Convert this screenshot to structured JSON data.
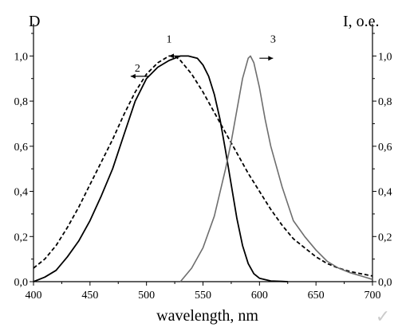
{
  "chart_data": {
    "type": "line",
    "xlabel": "wavelength, nm",
    "ylabel_left": "D",
    "ylabel_right": "I, o.e.",
    "xlim": [
      400,
      700
    ],
    "ylim": [
      0.0,
      1.1
    ],
    "x_ticks": [
      400,
      450,
      500,
      550,
      600,
      650,
      700
    ],
    "y_ticks": [
      0.0,
      0.2,
      0.4,
      0.6,
      0.8,
      1.0
    ],
    "y_tick_labels": [
      "0,0",
      "0,2",
      "0,4",
      "0,6",
      "0,8",
      "1,0"
    ],
    "curve_labels": [
      {
        "text": "1",
        "series": 0,
        "arrow": "left"
      },
      {
        "text": "2",
        "series": 1,
        "arrow": "left"
      },
      {
        "text": "3",
        "series": 2,
        "arrow": "right"
      }
    ],
    "series": [
      {
        "style": "solid",
        "color": "#000000",
        "axis": "left",
        "x": [
          400,
          410,
          420,
          430,
          440,
          450,
          460,
          470,
          480,
          490,
          500,
          510,
          520,
          530,
          537,
          545,
          550,
          555,
          560,
          565,
          570,
          575,
          580,
          585,
          590,
          595,
          600,
          610,
          620,
          625
        ],
        "y": [
          0.0,
          0.02,
          0.05,
          0.11,
          0.18,
          0.27,
          0.38,
          0.5,
          0.65,
          0.8,
          0.9,
          0.95,
          0.98,
          1.0,
          1.0,
          0.99,
          0.96,
          0.91,
          0.83,
          0.72,
          0.58,
          0.43,
          0.28,
          0.16,
          0.08,
          0.035,
          0.015,
          0.003,
          0.001,
          0.0
        ]
      },
      {
        "style": "dashed",
        "color": "#000000",
        "axis": "left",
        "x": [
          400,
          410,
          420,
          430,
          440,
          450,
          460,
          470,
          480,
          490,
          500,
          510,
          520,
          525,
          530,
          540,
          550,
          560,
          570,
          580,
          590,
          600,
          610,
          620,
          630,
          640,
          650,
          660,
          670,
          680,
          690,
          700
        ],
        "y": [
          0.06,
          0.1,
          0.16,
          0.24,
          0.33,
          0.43,
          0.53,
          0.63,
          0.74,
          0.84,
          0.92,
          0.97,
          1.0,
          1.0,
          0.98,
          0.92,
          0.84,
          0.75,
          0.66,
          0.57,
          0.48,
          0.4,
          0.32,
          0.25,
          0.19,
          0.15,
          0.11,
          0.08,
          0.06,
          0.045,
          0.035,
          0.025
        ]
      },
      {
        "style": "solid",
        "color": "#6e6e6e",
        "axis": "right",
        "x": [
          530,
          540,
          550,
          560,
          570,
          575,
          580,
          585,
          590,
          592,
          595,
          600,
          605,
          610,
          620,
          630,
          640,
          650,
          660,
          670,
          680,
          690,
          700
        ],
        "y": [
          0.0,
          0.06,
          0.15,
          0.29,
          0.5,
          0.62,
          0.76,
          0.9,
          0.99,
          1.0,
          0.97,
          0.86,
          0.72,
          0.6,
          0.42,
          0.27,
          0.2,
          0.14,
          0.09,
          0.06,
          0.04,
          0.025,
          0.01
        ]
      }
    ]
  },
  "watermark": "✓"
}
